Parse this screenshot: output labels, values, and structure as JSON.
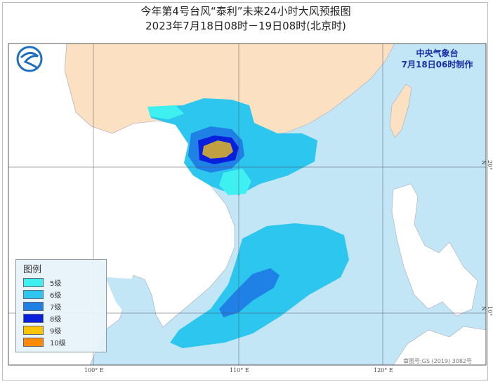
{
  "title": {
    "line1": "今年第4号台风“泰利”未来24小时大风预报图",
    "line2": "2023年7月18日08时－19日08时(北京时)"
  },
  "agency": {
    "name": "中央气象台",
    "issued": "7月18日06时制作"
  },
  "legend": {
    "title": "图例",
    "items": [
      {
        "label": "5级",
        "color": "#3ff0f0"
      },
      {
        "label": "6级",
        "color": "#2cc6ee"
      },
      {
        "label": "7级",
        "color": "#1f80e6"
      },
      {
        "label": "8级",
        "color": "#0a1fdc"
      },
      {
        "label": "9级",
        "color": "#ffc400"
      },
      {
        "label": "10级",
        "color": "#ff8c00"
      }
    ]
  },
  "axes": {
    "lon_labels": [
      "100° E",
      "110° E",
      "120° E"
    ],
    "lat_labels": [
      "20° N",
      "10° N"
    ]
  },
  "approval_number": "审图号:GS (2019) 3082号",
  "colors": {
    "sea": "#c3e6f7",
    "china_land": "#fbe1c1",
    "other_land": "#ffffff",
    "logo": "#1f6fbf"
  },
  "icons": {
    "logo": "cma-logo"
  }
}
